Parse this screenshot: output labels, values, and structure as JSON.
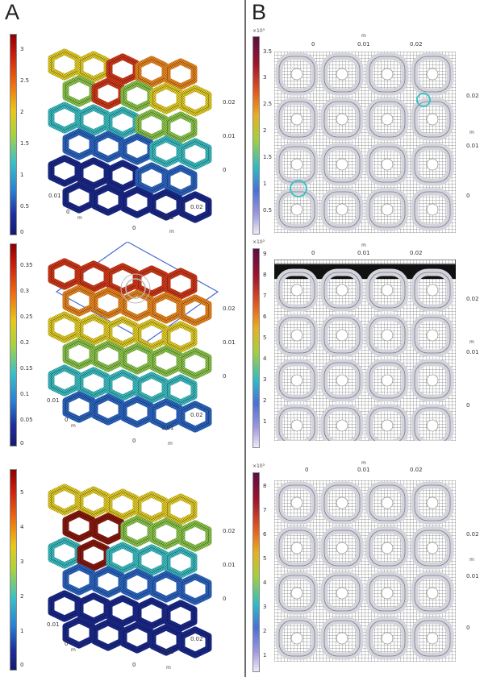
{
  "panels": {
    "left": "A",
    "right": "B"
  },
  "colors": {
    "dark_red": "#8e1a10",
    "red": "#d63a1a",
    "orange": "#ee8a22",
    "yellow": "#e6d12c",
    "green": "#8fca4f",
    "cyan": "#3fc1c6",
    "blue": "#2d68c6",
    "navy": "#1b2a8f",
    "lattice_gray": "#d4d4dc",
    "plane_blue": "#4a6bd0"
  },
  "left": {
    "row1": {
      "colorbar_ticks": [
        "3",
        "2.5",
        "2",
        "1.5",
        "1",
        "0.5",
        "0"
      ],
      "axis": {
        "z_ticks": [
          "0.02",
          "0.01",
          "0"
        ],
        "x_ticks": [
          "0.02",
          "0.01",
          "0"
        ],
        "x_unit": "m",
        "y_ticks": [
          "0.01",
          "0"
        ],
        "y_unit": "m"
      }
    },
    "row2": {
      "colorbar_ticks": [
        "0.35",
        "0.3",
        "0.25",
        "0.2",
        "0.15",
        "0.1",
        "0.05",
        "0"
      ],
      "axis": {
        "z_ticks": [
          "0.02",
          "0.01",
          "0"
        ],
        "x_ticks": [
          "0.02",
          "0.01",
          "0"
        ],
        "x_unit": "m",
        "y_ticks": [
          "0.01",
          "0"
        ],
        "y_unit": "m"
      }
    },
    "row3": {
      "colorbar_ticks": [
        "5",
        "4",
        "3",
        "2",
        "1",
        "0"
      ],
      "axis": {
        "z_ticks": [
          "0.02",
          "0.01",
          "0"
        ],
        "x_ticks": [
          "0.02",
          "0.01",
          "0"
        ],
        "x_unit": "m",
        "y_ticks": [
          "0.01",
          "0"
        ],
        "y_unit": "m"
      }
    }
  },
  "right": {
    "row1": {
      "multiplier": "×10³",
      "colorbar_ticks": [
        "3.5",
        "3",
        "2.5",
        "2",
        "1.5",
        "1",
        "0.5"
      ],
      "top_unit": "m",
      "top_ticks": [
        "0",
        "0.01",
        "0.02"
      ],
      "side_ticks": [
        "0.02",
        "0.01",
        "0"
      ],
      "side_unit": "m"
    },
    "row2": {
      "multiplier": "×10³",
      "colorbar_ticks": [
        "9",
        "8",
        "7",
        "6",
        "5",
        "4",
        "3",
        "2",
        "1"
      ],
      "top_unit": "m",
      "top_ticks": [
        "0",
        "0.01",
        "0.02"
      ],
      "side_ticks": [
        "0.02",
        "0.01",
        "0"
      ],
      "side_unit": "m"
    },
    "row3": {
      "multiplier": "×10³",
      "colorbar_ticks": [
        "8",
        "7",
        "6",
        "5",
        "4",
        "3",
        "2",
        "1"
      ],
      "top_unit": "m",
      "top_ticks": [
        "0",
        "0.01",
        "0.02"
      ],
      "side_ticks": [
        "0.02",
        "0.01",
        "0"
      ],
      "side_unit": "m"
    }
  }
}
